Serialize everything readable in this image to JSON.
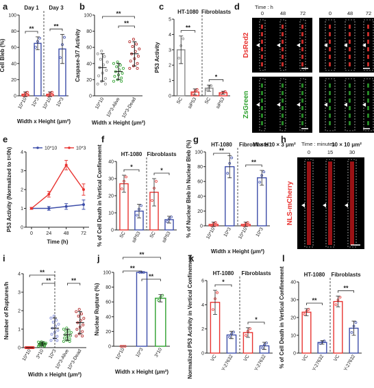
{
  "panel_letters": [
    "a",
    "b",
    "c",
    "d",
    "e",
    "f",
    "g",
    "h",
    "i",
    "j",
    "k",
    "l"
  ],
  "micro_d": {
    "time_label": "Time : h",
    "times": [
      "0",
      "48",
      "72",
      "0",
      "48",
      "72"
    ],
    "channel_top": "DsRed2",
    "channel_bottom": "ZsGreen",
    "wh_label": "W × H :",
    "dims": [
      "10 × 3 μm²",
      "10 × 10 μm²"
    ]
  },
  "micro_h": {
    "time_label": "Time : minutes",
    "times": [
      "0",
      "15",
      "30"
    ],
    "channel": "NLS-mCherry"
  },
  "colors": {
    "red": "#e8322f",
    "blue": "#3b4ca8",
    "green": "#2ca02c",
    "darkred": "#b02020",
    "lightblue": "#7a86d8"
  },
  "chart_data": [
    {
      "id": "a",
      "type": "bar",
      "ylabel": "Cell Bleb (%)",
      "xlabel": "Width x Height (μm²)",
      "ylim": [
        0,
        100
      ],
      "yticks": [
        "0",
        "20",
        "40",
        "60",
        "80",
        "100"
      ],
      "groups": [
        "Day 1",
        "Day 3"
      ],
      "categories": [
        "10*10",
        "10*3",
        "10*10",
        "10*3"
      ],
      "values": [
        2,
        65,
        2,
        58
      ],
      "errors": [
        3,
        8,
        3,
        18
      ],
      "colors": [
        "red",
        "blue",
        "red",
        "blue"
      ],
      "sig": [
        "**",
        "**"
      ]
    },
    {
      "id": "b",
      "type": "scatter",
      "ylabel": "Caspase-3/7 Activity",
      "xlabel": "Width x Height (μm²)",
      "ylim": [
        0,
        100
      ],
      "yticks": [
        "0",
        "20",
        "40",
        "60",
        "80",
        "100"
      ],
      "categories": [
        "10*10",
        "10*3-Alive",
        "10*3-Dead"
      ],
      "values": [
        35,
        30,
        52
      ],
      "errors": [
        17,
        10,
        15
      ],
      "colors": [
        "gray",
        "green",
        "darkred"
      ],
      "sig": [
        "**",
        "**"
      ]
    },
    {
      "id": "c",
      "type": "bar",
      "ylabel": "P53 Activity",
      "ylim": [
        0,
        5
      ],
      "yticks": [
        "0",
        "1",
        "2",
        "3",
        "4",
        "5"
      ],
      "groups": [
        "HT-1080",
        "Fibroblasts"
      ],
      "categories": [
        "SC",
        "siP53",
        "SC",
        "siP53"
      ],
      "values": [
        3.0,
        0.25,
        0.5,
        0.2
      ],
      "errors": [
        0.9,
        0.2,
        0.2,
        0.1
      ],
      "colors": [
        "gray",
        "red",
        "gray",
        "red"
      ],
      "sig": [
        "**",
        "*"
      ]
    },
    {
      "id": "e",
      "type": "line",
      "ylabel": "P53 Activity (Normalized to t=0h)",
      "xlabel": "Time (h)",
      "ylim": [
        0,
        4
      ],
      "yticks": [
        "0",
        "1",
        "2",
        "3",
        "4"
      ],
      "x": [
        0,
        24,
        48,
        72
      ],
      "xticks": [
        "0",
        "24",
        "48",
        "72"
      ],
      "series": [
        {
          "name": "10*10",
          "values": [
            1.0,
            1.0,
            1.1,
            1.2
          ],
          "errors": [
            0.05,
            0.1,
            0.15,
            0.25
          ],
          "color": "blue"
        },
        {
          "name": "10*3",
          "values": [
            1.0,
            1.75,
            3.3,
            2.0
          ],
          "errors": [
            0.05,
            0.15,
            0.25,
            0.3
          ],
          "color": "red"
        }
      ]
    },
    {
      "id": "f",
      "type": "bar",
      "ylabel": "% of Cell Death in Vertical Confinement",
      "ylim": [
        0,
        40
      ],
      "yticks": [
        "0",
        "10",
        "20",
        "30",
        "40"
      ],
      "groups": [
        "HT-1080",
        "Fibroblasts"
      ],
      "categories": [
        "SC",
        "siP53",
        "SC",
        "siP53"
      ],
      "values": [
        27,
        11,
        22,
        6
      ],
      "errors": [
        5,
        4,
        8,
        2
      ],
      "colors": [
        "red",
        "blue",
        "red",
        "blue"
      ],
      "sig": [
        "*",
        "*"
      ]
    },
    {
      "id": "g",
      "type": "bar",
      "ylabel": "% of Nuclear Bleb in Nuclear Bleb (%)",
      "xlabel": "Width x Height (μm²)",
      "ylim": [
        0,
        100
      ],
      "yticks": [
        "0",
        "20",
        "40",
        "60",
        "80",
        "100"
      ],
      "groups": [
        "HT-1080",
        "Fibroblasts"
      ],
      "categories": [
        "10*10",
        "10*3",
        "10*10",
        "10*3"
      ],
      "values": [
        2,
        80,
        2,
        65
      ],
      "errors": [
        3,
        15,
        3,
        10
      ],
      "colors": [
        "red",
        "blue",
        "red",
        "blue"
      ],
      "sig": [
        "**",
        "**"
      ]
    },
    {
      "id": "i",
      "type": "scatter",
      "ylabel": "Number of Ruptures/h",
      "xlabel": "Width x Height (μm²)",
      "ylim": [
        0,
        4
      ],
      "yticks": [
        "0",
        "1",
        "2",
        "3",
        "4"
      ],
      "categories": [
        "10*10",
        "3*10",
        "10*3",
        "10*3-Alive",
        "10*3-Dead"
      ],
      "values": [
        0,
        0.2,
        1.05,
        0.7,
        1.35
      ],
      "errors": [
        0,
        0.1,
        0.55,
        0.3,
        0.6
      ],
      "colors": [
        "red",
        "green",
        "lightblue",
        "green",
        "darkred"
      ],
      "sig": [
        "**",
        "**",
        "**"
      ]
    },
    {
      "id": "j",
      "type": "bar",
      "ylabel": "Nuclear Rupture (%)",
      "xlabel": "Width x Height (μm²)",
      "ylim": [
        0,
        100
      ],
      "yticks": [
        "0",
        "20",
        "40",
        "60",
        "80",
        "100"
      ],
      "categories": [
        "10*10",
        "10*3",
        "3*10"
      ],
      "values": [
        0,
        100,
        65
      ],
      "errors": [
        0,
        0,
        5
      ],
      "colors": [
        "red",
        "blue",
        "green"
      ],
      "sig": [
        "**",
        "**",
        "**"
      ]
    },
    {
      "id": "k",
      "type": "bar",
      "ylabel": "Normalized P53 Activity in Vertical Confinement",
      "ylim": [
        0,
        6
      ],
      "yticks": [
        "0",
        "2",
        "4",
        "6"
      ],
      "groups": [
        "HT-1080",
        "Fibroblasts"
      ],
      "categories": [
        "VC",
        "Y-27632",
        "VC",
        "Y-27632"
      ],
      "values": [
        4.2,
        1.5,
        1.7,
        0.6
      ],
      "errors": [
        1.0,
        0.3,
        0.4,
        0.3
      ],
      "colors": [
        "red",
        "blue",
        "red",
        "blue"
      ],
      "sig": [
        "*",
        "*"
      ]
    },
    {
      "id": "l",
      "type": "bar",
      "ylabel": "% of Cell Death in Vertical Confinement",
      "ylim": [
        0,
        40
      ],
      "yticks": [
        "0",
        "10",
        "20",
        "30",
        "40"
      ],
      "groups": [
        "HT-1080",
        "Fibroblasts"
      ],
      "categories": [
        "VC",
        "Y-27632",
        "VC",
        "Y-27632"
      ],
      "values": [
        23,
        6,
        29,
        14
      ],
      "errors": [
        2,
        1,
        3,
        4
      ],
      "colors": [
        "red",
        "blue",
        "red",
        "blue"
      ],
      "sig": [
        "**",
        "**"
      ]
    }
  ]
}
